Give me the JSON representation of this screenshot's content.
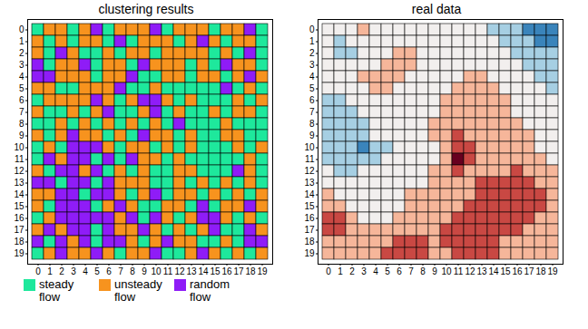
{
  "chart_data": [
    {
      "type": "heatmap",
      "title": "clustering results",
      "xticks": [
        0,
        1,
        2,
        3,
        4,
        5,
        6,
        7,
        8,
        9,
        10,
        11,
        12,
        13,
        14,
        15,
        16,
        17,
        18,
        19
      ],
      "yticks": [
        0,
        1,
        2,
        3,
        4,
        5,
        6,
        7,
        8,
        9,
        10,
        11,
        12,
        13,
        14,
        15,
        16,
        17,
        18,
        19
      ],
      "legend": "bottom",
      "classes": [
        {
          "name": "steady flow",
          "color": "#1ee89c"
        },
        {
          "name": "unsteady flow",
          "color": "#f7931e"
        },
        {
          "name": "random flow",
          "color": "#8f1cf7"
        }
      ],
      "cells": [
        [
          0,
          1,
          1,
          0,
          1,
          2,
          0,
          1,
          1,
          1,
          2,
          0,
          1,
          1,
          1,
          0,
          1,
          1,
          2,
          0
        ],
        [
          1,
          0,
          1,
          0,
          1,
          1,
          0,
          2,
          0,
          1,
          1,
          1,
          0,
          1,
          2,
          1,
          0,
          1,
          1,
          0
        ],
        [
          1,
          0,
          2,
          1,
          0,
          0,
          1,
          0,
          1,
          1,
          0,
          1,
          1,
          1,
          1,
          0,
          1,
          0,
          2,
          0
        ],
        [
          2,
          0,
          1,
          1,
          2,
          0,
          1,
          1,
          0,
          2,
          1,
          1,
          1,
          0,
          1,
          0,
          2,
          1,
          1,
          0
        ],
        [
          2,
          2,
          1,
          1,
          1,
          0,
          1,
          1,
          2,
          0,
          0,
          1,
          1,
          0,
          1,
          1,
          0,
          1,
          2,
          1
        ],
        [
          1,
          1,
          0,
          0,
          1,
          1,
          1,
          2,
          0,
          0,
          1,
          0,
          0,
          0,
          0,
          0,
          2,
          0,
          1,
          0
        ],
        [
          0,
          1,
          1,
          1,
          1,
          2,
          1,
          0,
          1,
          2,
          2,
          1,
          0,
          1,
          0,
          0,
          0,
          1,
          0,
          1
        ],
        [
          1,
          0,
          0,
          1,
          0,
          1,
          2,
          0,
          0,
          1,
          2,
          0,
          1,
          0,
          0,
          1,
          0,
          1,
          1,
          0
        ],
        [
          0,
          0,
          1,
          0,
          1,
          0,
          1,
          0,
          1,
          0,
          1,
          0,
          2,
          0,
          0,
          0,
          1,
          0,
          0,
          0
        ],
        [
          1,
          0,
          1,
          2,
          1,
          1,
          0,
          1,
          0,
          2,
          1,
          1,
          0,
          1,
          0,
          0,
          1,
          1,
          0,
          0
        ],
        [
          0,
          1,
          0,
          2,
          2,
          2,
          1,
          0,
          1,
          1,
          0,
          1,
          0,
          1,
          0,
          0,
          0,
          1,
          0,
          1
        ],
        [
          0,
          2,
          1,
          2,
          2,
          0,
          2,
          0,
          2,
          1,
          1,
          0,
          1,
          0,
          0,
          0,
          0,
          0,
          1,
          0
        ],
        [
          1,
          0,
          2,
          2,
          1,
          2,
          0,
          1,
          0,
          1,
          0,
          0,
          1,
          1,
          0,
          0,
          0,
          2,
          1,
          0
        ],
        [
          2,
          2,
          0,
          2,
          2,
          0,
          2,
          1,
          1,
          1,
          0,
          0,
          1,
          0,
          1,
          0,
          1,
          0,
          1,
          0
        ],
        [
          1,
          1,
          2,
          2,
          0,
          2,
          2,
          1,
          0,
          1,
          2,
          0,
          1,
          1,
          0,
          1,
          0,
          1,
          0,
          1
        ],
        [
          1,
          0,
          2,
          2,
          2,
          0,
          1,
          2,
          1,
          0,
          0,
          1,
          1,
          0,
          2,
          0,
          1,
          1,
          2,
          1
        ],
        [
          0,
          1,
          2,
          2,
          2,
          2,
          2,
          1,
          2,
          0,
          2,
          1,
          0,
          1,
          2,
          2,
          1,
          0,
          1,
          0
        ],
        [
          1,
          2,
          1,
          2,
          2,
          0,
          2,
          1,
          1,
          2,
          1,
          0,
          1,
          0,
          1,
          2,
          0,
          0,
          2,
          1
        ],
        [
          2,
          0,
          2,
          1,
          2,
          0,
          2,
          2,
          1,
          0,
          1,
          2,
          1,
          1,
          0,
          0,
          1,
          0,
          2,
          2
        ],
        [
          0,
          1,
          2,
          1,
          1,
          2,
          1,
          0,
          1,
          1,
          2,
          0,
          0,
          1,
          2,
          1,
          0,
          1,
          0,
          1
        ]
      ]
    },
    {
      "type": "heatmap",
      "title": "real data",
      "xticks": [
        0,
        1,
        2,
        3,
        4,
        5,
        6,
        7,
        8,
        9,
        10,
        11,
        12,
        13,
        14,
        15,
        16,
        17,
        18,
        19
      ],
      "yticks": [
        0,
        1,
        2,
        3,
        4,
        5,
        6,
        7,
        8,
        9,
        10,
        11,
        12,
        13,
        14,
        15,
        16,
        17,
        18,
        19
      ],
      "vlim": [
        -3,
        3
      ],
      "cells": [
        [
          0,
          0,
          0,
          1,
          0,
          0,
          0,
          0,
          0,
          0,
          0,
          0,
          0,
          0,
          -1,
          -1,
          -1,
          -2,
          -2,
          -2
        ],
        [
          0,
          -1,
          0,
          0,
          0,
          0,
          0,
          0,
          0,
          0,
          0,
          0,
          0,
          0,
          0,
          -1,
          -1,
          -1,
          -2,
          -2
        ],
        [
          0,
          -1,
          -1,
          0,
          0,
          0,
          1,
          1,
          0,
          0,
          0,
          0,
          0,
          0,
          0,
          0,
          -1,
          -1,
          -1,
          -1
        ],
        [
          0,
          0,
          0,
          0,
          0,
          1,
          1,
          1,
          0,
          0,
          0,
          0,
          0,
          0,
          0,
          0,
          0,
          -1,
          -1,
          -1
        ],
        [
          0,
          0,
          0,
          1,
          1,
          1,
          1,
          0,
          0,
          0,
          0,
          0,
          1,
          1,
          0,
          0,
          0,
          0,
          -1,
          -1
        ],
        [
          0,
          0,
          0,
          0,
          1,
          1,
          0,
          0,
          0,
          0,
          0,
          1,
          1,
          1,
          1,
          0,
          0,
          0,
          0,
          -1
        ],
        [
          -1,
          -1,
          0,
          0,
          0,
          0,
          0,
          0,
          0,
          0,
          1,
          1,
          1,
          1,
          1,
          1,
          0,
          0,
          0,
          0
        ],
        [
          -1,
          -1,
          -1,
          0,
          0,
          0,
          0,
          0,
          0,
          0,
          1,
          1,
          1,
          1,
          1,
          1,
          0,
          0,
          0,
          0
        ],
        [
          -1,
          -1,
          -1,
          -1,
          0,
          0,
          0,
          0,
          0,
          1,
          1,
          1,
          1,
          1,
          1,
          1,
          1,
          0,
          0,
          0
        ],
        [
          -1,
          -1,
          -1,
          -1,
          0,
          0,
          0,
          0,
          0,
          1,
          1,
          2,
          1,
          1,
          1,
          1,
          1,
          1,
          0,
          0
        ],
        [
          -1,
          -1,
          -1,
          -2,
          -1,
          -1,
          0,
          0,
          0,
          0,
          1,
          2,
          2,
          1,
          1,
          1,
          1,
          1,
          0,
          0
        ],
        [
          -1,
          -1,
          -1,
          -1,
          -1,
          0,
          0,
          0,
          0,
          0,
          1,
          3,
          2,
          1,
          1,
          1,
          1,
          1,
          1,
          0
        ],
        [
          0,
          -1,
          -1,
          0,
          0,
          0,
          0,
          0,
          0,
          1,
          1,
          2,
          1,
          1,
          1,
          1,
          2,
          1,
          1,
          1
        ],
        [
          0,
          0,
          0,
          0,
          0,
          0,
          0,
          0,
          0,
          1,
          1,
          1,
          1,
          2,
          2,
          2,
          2,
          2,
          1,
          1
        ],
        [
          1,
          0,
          0,
          0,
          0,
          0,
          0,
          1,
          1,
          1,
          1,
          1,
          1,
          2,
          2,
          2,
          2,
          2,
          2,
          1
        ],
        [
          1,
          1,
          0,
          0,
          0,
          0,
          0,
          1,
          1,
          1,
          1,
          1,
          2,
          2,
          2,
          2,
          2,
          2,
          2,
          1
        ],
        [
          2,
          2,
          1,
          0,
          0,
          0,
          1,
          1,
          1,
          1,
          1,
          2,
          2,
          2,
          2,
          2,
          2,
          2,
          1,
          1
        ],
        [
          2,
          2,
          1,
          1,
          1,
          1,
          1,
          1,
          1,
          1,
          2,
          2,
          2,
          2,
          2,
          2,
          2,
          1,
          1,
          1
        ],
        [
          1,
          1,
          1,
          1,
          1,
          1,
          2,
          2,
          2,
          1,
          2,
          2,
          2,
          2,
          2,
          1,
          1,
          1,
          1,
          1
        ],
        [
          1,
          1,
          1,
          1,
          1,
          2,
          2,
          2,
          2,
          1,
          1,
          2,
          2,
          2,
          2,
          1,
          1,
          1,
          1,
          1
        ]
      ]
    }
  ]
}
